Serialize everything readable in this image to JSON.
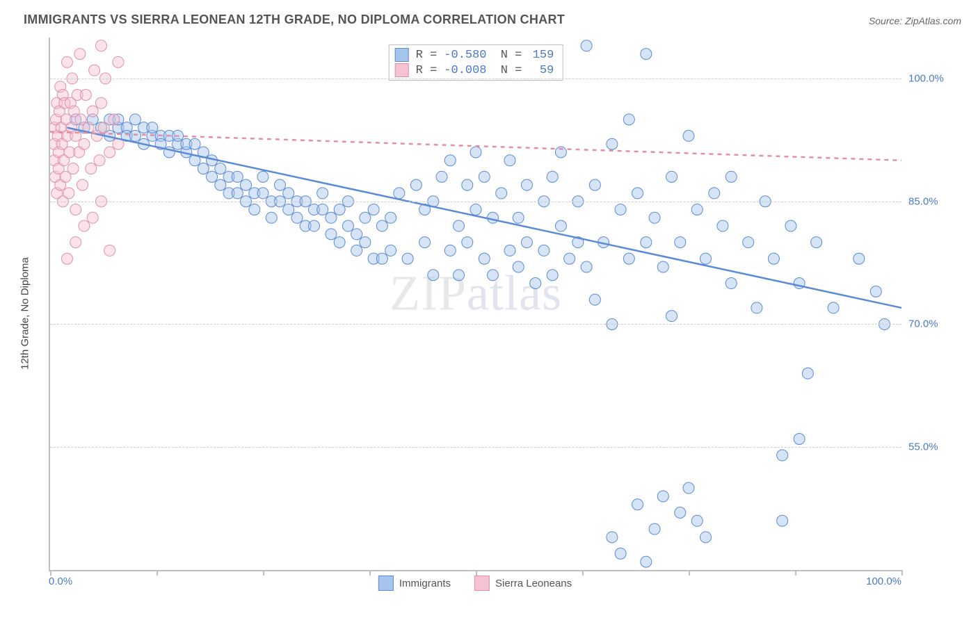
{
  "title": "IMMIGRANTS VS SIERRA LEONEAN 12TH GRADE, NO DIPLOMA CORRELATION CHART",
  "source": "Source: ZipAtlas.com",
  "ylabel": "12th Grade, No Diploma",
  "watermark_a": "ZIP",
  "watermark_b": "atlas",
  "chart": {
    "type": "scatter",
    "xlim": [
      0,
      100
    ],
    "ylim": [
      40,
      105
    ],
    "x_ticks": [
      0,
      12.5,
      25,
      37.5,
      50,
      62.5,
      75,
      87.5,
      100
    ],
    "x_tick_labels_shown": {
      "min": "0.0%",
      "max": "100.0%"
    },
    "y_gridlines": [
      55,
      70,
      85,
      100
    ],
    "y_tick_labels": [
      "55.0%",
      "70.0%",
      "85.0%",
      "100.0%"
    ],
    "background_color": "#ffffff",
    "grid_color": "#cccccc",
    "axis_color": "#bfbfbf",
    "label_color": "#4a7ac7",
    "title_color": "#555555",
    "marker_radius": 8,
    "marker_opacity": 0.45,
    "line_width": 2.5,
    "series": [
      {
        "name": "Immigrants",
        "color_fill": "#a7c4ec",
        "color_stroke": "#5a8bd4",
        "R": "-0.580",
        "N": "159",
        "trend": {
          "x1": 2,
          "y1": 94,
          "x2": 100,
          "y2": 72,
          "style": "solid"
        },
        "points": [
          [
            3,
            95
          ],
          [
            4,
            94
          ],
          [
            5,
            95
          ],
          [
            6,
            94
          ],
          [
            7,
            95
          ],
          [
            7,
            93
          ],
          [
            8,
            94
          ],
          [
            8,
            95
          ],
          [
            9,
            94
          ],
          [
            9,
            93
          ],
          [
            10,
            95
          ],
          [
            10,
            93
          ],
          [
            11,
            94
          ],
          [
            11,
            92
          ],
          [
            12,
            93
          ],
          [
            12,
            94
          ],
          [
            13,
            93
          ],
          [
            13,
            92
          ],
          [
            14,
            93
          ],
          [
            14,
            91
          ],
          [
            15,
            92
          ],
          [
            15,
            93
          ],
          [
            16,
            91
          ],
          [
            16,
            92
          ],
          [
            17,
            90
          ],
          [
            17,
            92
          ],
          [
            18,
            91
          ],
          [
            18,
            89
          ],
          [
            19,
            90
          ],
          [
            19,
            88
          ],
          [
            20,
            89
          ],
          [
            20,
            87
          ],
          [
            21,
            88
          ],
          [
            21,
            86
          ],
          [
            22,
            88
          ],
          [
            22,
            86
          ],
          [
            23,
            87
          ],
          [
            23,
            85
          ],
          [
            24,
            86
          ],
          [
            24,
            84
          ],
          [
            25,
            86
          ],
          [
            25,
            88
          ],
          [
            26,
            85
          ],
          [
            26,
            83
          ],
          [
            27,
            85
          ],
          [
            27,
            87
          ],
          [
            28,
            84
          ],
          [
            28,
            86
          ],
          [
            29,
            83
          ],
          [
            29,
            85
          ],
          [
            30,
            82
          ],
          [
            30,
            85
          ],
          [
            31,
            84
          ],
          [
            31,
            82
          ],
          [
            32,
            84
          ],
          [
            32,
            86
          ],
          [
            33,
            83
          ],
          [
            33,
            81
          ],
          [
            34,
            84
          ],
          [
            34,
            80
          ],
          [
            35,
            82
          ],
          [
            35,
            85
          ],
          [
            36,
            81
          ],
          [
            36,
            79
          ],
          [
            37,
            80
          ],
          [
            37,
            83
          ],
          [
            38,
            78
          ],
          [
            38,
            84
          ],
          [
            39,
            82
          ],
          [
            39,
            78
          ],
          [
            40,
            79
          ],
          [
            40,
            83
          ],
          [
            41,
            86
          ],
          [
            42,
            78
          ],
          [
            43,
            87
          ],
          [
            44,
            80
          ],
          [
            44,
            84
          ],
          [
            45,
            76
          ],
          [
            45,
            85
          ],
          [
            46,
            88
          ],
          [
            47,
            79
          ],
          [
            47,
            90
          ],
          [
            48,
            82
          ],
          [
            48,
            76
          ],
          [
            49,
            87
          ],
          [
            49,
            80
          ],
          [
            50,
            91
          ],
          [
            50,
            84
          ],
          [
            51,
            78
          ],
          [
            51,
            88
          ],
          [
            52,
            83
          ],
          [
            52,
            76
          ],
          [
            53,
            86
          ],
          [
            54,
            79
          ],
          [
            54,
            90
          ],
          [
            55,
            83
          ],
          [
            55,
            77
          ],
          [
            56,
            87
          ],
          [
            56,
            80
          ],
          [
            57,
            75
          ],
          [
            58,
            85
          ],
          [
            58,
            79
          ],
          [
            59,
            88
          ],
          [
            59,
            76
          ],
          [
            60,
            82
          ],
          [
            60,
            91
          ],
          [
            61,
            78
          ],
          [
            62,
            85
          ],
          [
            62,
            80
          ],
          [
            63,
            104
          ],
          [
            63,
            77
          ],
          [
            64,
            87
          ],
          [
            64,
            73
          ],
          [
            65,
            80
          ],
          [
            66,
            92
          ],
          [
            66,
            70
          ],
          [
            67,
            84
          ],
          [
            67,
            42
          ],
          [
            68,
            78
          ],
          [
            68,
            95
          ],
          [
            69,
            86
          ],
          [
            69,
            48
          ],
          [
            70,
            80
          ],
          [
            70,
            103
          ],
          [
            71,
            83
          ],
          [
            72,
            77
          ],
          [
            72,
            49
          ],
          [
            73,
            88
          ],
          [
            73,
            71
          ],
          [
            74,
            80
          ],
          [
            75,
            93
          ],
          [
            75,
            50
          ],
          [
            76,
            84
          ],
          [
            76,
            46
          ],
          [
            77,
            78
          ],
          [
            78,
            86
          ],
          [
            79,
            82
          ],
          [
            80,
            75
          ],
          [
            80,
            88
          ],
          [
            82,
            80
          ],
          [
            83,
            72
          ],
          [
            84,
            85
          ],
          [
            85,
            78
          ],
          [
            86,
            54
          ],
          [
            87,
            82
          ],
          [
            88,
            75
          ],
          [
            89,
            64
          ],
          [
            90,
            80
          ],
          [
            92,
            72
          ],
          [
            95,
            78
          ],
          [
            97,
            74
          ],
          [
            98,
            70
          ],
          [
            77,
            44
          ],
          [
            74,
            47
          ],
          [
            71,
            45
          ],
          [
            66,
            44
          ],
          [
            86,
            46
          ],
          [
            88,
            56
          ],
          [
            70,
            41
          ]
        ]
      },
      {
        "name": "Sierra Leoneans",
        "color_fill": "#f4c2d0",
        "color_stroke": "#e091a8",
        "R": "-0.008",
        "N": "59",
        "trend": {
          "x1": 0,
          "y1": 93.5,
          "x2": 100,
          "y2": 90,
          "style": "dashed"
        },
        "points": [
          [
            0.5,
            94
          ],
          [
            0.5,
            92
          ],
          [
            0.5,
            90
          ],
          [
            0.6,
            88
          ],
          [
            0.7,
            95
          ],
          [
            0.8,
            86
          ],
          [
            0.8,
            97
          ],
          [
            0.9,
            93
          ],
          [
            1,
            91
          ],
          [
            1,
            89
          ],
          [
            1.1,
            96
          ],
          [
            1.2,
            87
          ],
          [
            1.2,
            99
          ],
          [
            1.3,
            94
          ],
          [
            1.4,
            92
          ],
          [
            1.5,
            85
          ],
          [
            1.5,
            98
          ],
          [
            1.6,
            90
          ],
          [
            1.7,
            97
          ],
          [
            1.8,
            88
          ],
          [
            1.9,
            95
          ],
          [
            2,
            102
          ],
          [
            2,
            93
          ],
          [
            2.2,
            86
          ],
          [
            2.3,
            91
          ],
          [
            2.4,
            97
          ],
          [
            2.5,
            94
          ],
          [
            2.6,
            100
          ],
          [
            2.7,
            89
          ],
          [
            2.8,
            96
          ],
          [
            3,
            93
          ],
          [
            3,
            84
          ],
          [
            3.2,
            98
          ],
          [
            3.4,
            91
          ],
          [
            3.5,
            103
          ],
          [
            3.6,
            95
          ],
          [
            3.8,
            87
          ],
          [
            4,
            92
          ],
          [
            4.2,
            98
          ],
          [
            4.5,
            94
          ],
          [
            4.8,
            89
          ],
          [
            5,
            96
          ],
          [
            5,
            83
          ],
          [
            5.2,
            101
          ],
          [
            5.5,
            93
          ],
          [
            5.8,
            90
          ],
          [
            6,
            97
          ],
          [
            6,
            85
          ],
          [
            6.3,
            94
          ],
          [
            6.5,
            100
          ],
          [
            7,
            91
          ],
          [
            7,
            79
          ],
          [
            7.5,
            95
          ],
          [
            8,
            92
          ],
          [
            8,
            102
          ],
          [
            3,
            80
          ],
          [
            2,
            78
          ],
          [
            4,
            82
          ],
          [
            6,
            104
          ]
        ]
      }
    ]
  },
  "bottom_legend": [
    {
      "label": "Immigrants",
      "fill": "#a7c4ec",
      "stroke": "#5a8bd4"
    },
    {
      "label": "Sierra Leoneans",
      "fill": "#f4c2d0",
      "stroke": "#e091a8"
    }
  ]
}
